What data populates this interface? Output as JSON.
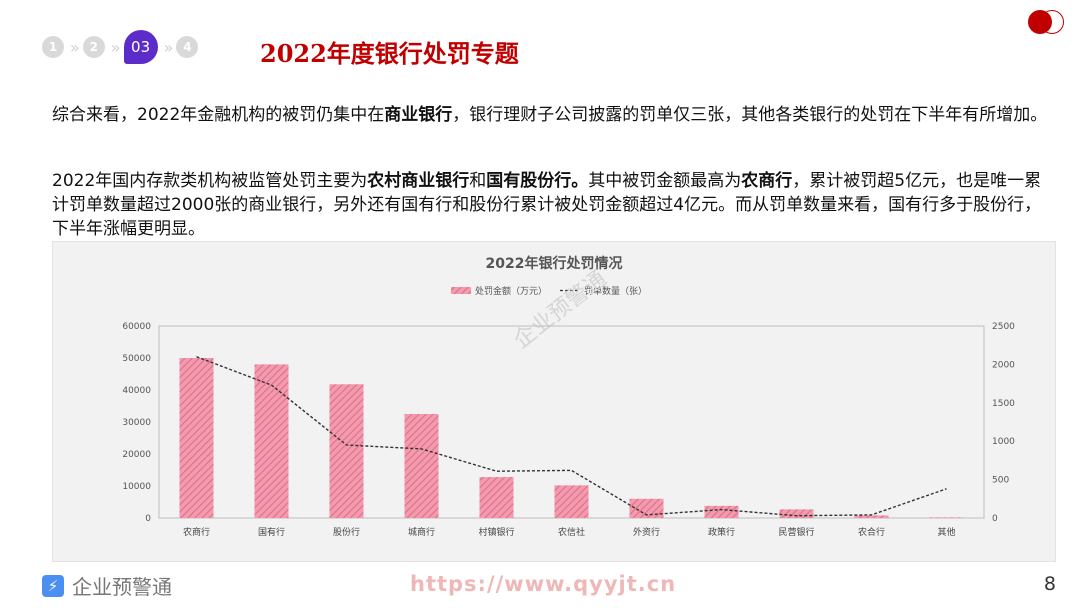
{
  "steps": {
    "items": [
      "1",
      "2",
      "03",
      "4"
    ],
    "active_index": 2
  },
  "title": "2022年度银行处罚专题",
  "paragraphs": {
    "p1": {
      "t1": "综合来看，2022年金融机构的被罚仍集中在",
      "b1": "商业银行",
      "t2": "，银行理财子公司披露的罚单仅三张，其他各类银行的处罚在下半年有所增加。"
    },
    "p2": {
      "t1": "2022年国内存款类机构被监管处罚主要为",
      "b1": "农村商业银行",
      "t2": "和",
      "b2": "国有股份行。",
      "t3": "其中被罚金额最高为",
      "b3": "农商行",
      "t4": "，累计被罚超5亿元，也是唯一累计罚单数量超过2000张的商业银行，另外还有国有行和股份行累计被处罚金额超过4亿元。而从罚单数量来看，国有行多于股份行，下半年涨幅更明显。"
    }
  },
  "watermark": "企业预警通",
  "chart_data": {
    "type": "bar",
    "title": "2022年银行处罚情况",
    "categories": [
      "农商行",
      "国有行",
      "股份行",
      "城商行",
      "村镇银行",
      "农信社",
      "外资行",
      "政策行",
      "民营银行",
      "农合行",
      "其他"
    ],
    "series": [
      {
        "name": "处罚金额（万元）",
        "type": "bar",
        "axis": "left",
        "color": "#e87890",
        "values": [
          50000,
          48000,
          41800,
          32500,
          12800,
          10200,
          6000,
          3800,
          2700,
          800,
          200
        ]
      },
      {
        "name": "罚单数量（张）",
        "type": "line",
        "axis": "right",
        "color": "#333333",
        "dash": true,
        "values": [
          2100,
          1730,
          950,
          900,
          610,
          620,
          40,
          110,
          30,
          40,
          380
        ]
      }
    ],
    "y_left": {
      "ticks": [
        "0",
        "10000",
        "20000",
        "30000",
        "40000",
        "50000",
        "60000"
      ],
      "lim": [
        0,
        60000
      ]
    },
    "y_right": {
      "ticks": [
        "0",
        "500",
        "1000",
        "1500",
        "2000",
        "2500"
      ],
      "lim": [
        0,
        2500
      ]
    },
    "legend_position": "top"
  },
  "footer": {
    "brand": "企业预警通",
    "url": "https://www.qyyjt.cn",
    "page_number": "8"
  }
}
